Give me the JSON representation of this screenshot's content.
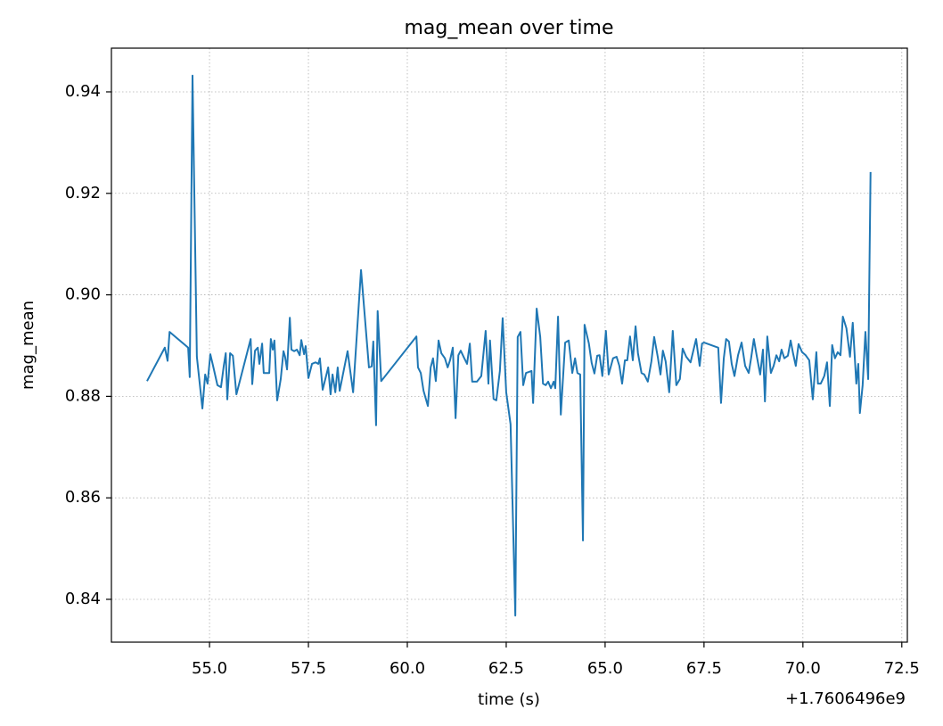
{
  "chart_data": {
    "type": "line",
    "title": "mag_mean over time",
    "xlabel": "time (s)",
    "ylabel": "mag_mean",
    "x_offset_label": "+1.7606496e9",
    "grid": true,
    "xlim": [
      52.52,
      72.64
    ],
    "ylim": [
      0.83156,
      0.94861
    ],
    "xticks": [
      {
        "value": 55.0,
        "label": "55.0"
      },
      57.5,
      {
        "value": 60.0,
        "label": "60.0"
      },
      62.5,
      {
        "value": 65.0,
        "label": "65.0"
      },
      67.5,
      {
        "value": 70.0,
        "label": "70.0"
      },
      72.5
    ],
    "yticks": [
      0.84,
      0.86,
      0.88,
      {
        "value": 0.9,
        "label": "0.90"
      },
      0.92,
      0.94
    ],
    "x": [
      53.42,
      53.87,
      53.94,
      53.99,
      54.46,
      54.5,
      54.57,
      54.68,
      54.82,
      54.89,
      54.95,
      55.02,
      55.09,
      55.2,
      55.29,
      55.36,
      55.41,
      55.45,
      55.52,
      55.59,
      55.68,
      56.04,
      56.08,
      56.15,
      56.22,
      56.26,
      56.33,
      56.37,
      56.51,
      56.55,
      56.6,
      56.64,
      56.71,
      56.8,
      56.87,
      56.91,
      56.96,
      57.03,
      57.07,
      57.14,
      57.21,
      57.28,
      57.32,
      57.39,
      57.43,
      57.5,
      57.59,
      57.68,
      57.75,
      57.79,
      57.86,
      58.0,
      58.06,
      58.11,
      58.18,
      58.24,
      58.29,
      58.49,
      58.63,
      58.83,
      59.03,
      59.1,
      59.14,
      59.21,
      59.25,
      59.34,
      60.23,
      60.27,
      60.34,
      60.41,
      60.52,
      60.59,
      60.65,
      60.72,
      60.79,
      60.86,
      60.95,
      61.02,
      61.08,
      61.15,
      61.22,
      61.29,
      61.35,
      61.44,
      61.51,
      61.58,
      61.64,
      61.76,
      61.87,
      61.98,
      62.05,
      62.09,
      62.18,
      62.25,
      62.34,
      62.41,
      62.5,
      62.61,
      62.73,
      62.79,
      62.86,
      62.93,
      63.0,
      63.14,
      63.18,
      63.27,
      63.36,
      63.43,
      63.5,
      63.56,
      63.63,
      63.7,
      63.74,
      63.81,
      63.88,
      63.99,
      64.08,
      64.17,
      64.24,
      64.3,
      64.37,
      64.44,
      64.48,
      64.59,
      64.66,
      64.73,
      64.8,
      64.86,
      64.93,
      65.02,
      65.09,
      65.2,
      65.29,
      65.36,
      65.43,
      65.5,
      65.56,
      65.63,
      65.7,
      65.77,
      65.83,
      65.92,
      65.99,
      66.08,
      66.17,
      66.24,
      66.33,
      66.4,
      66.46,
      66.53,
      66.62,
      66.71,
      66.8,
      66.89,
      66.96,
      67.05,
      67.16,
      67.3,
      67.39,
      67.45,
      67.5,
      67.86,
      67.93,
      68.0,
      68.06,
      68.13,
      68.2,
      68.27,
      68.36,
      68.45,
      68.54,
      68.63,
      68.69,
      68.76,
      68.83,
      68.92,
      68.99,
      69.04,
      69.1,
      69.19,
      69.26,
      69.33,
      69.4,
      69.46,
      69.53,
      69.62,
      69.69,
      69.75,
      69.82,
      69.89,
      69.98,
      70.07,
      70.16,
      70.25,
      70.34,
      70.38,
      70.45,
      70.54,
      70.61,
      70.68,
      70.74,
      70.81,
      70.88,
      70.95,
      71.01,
      71.1,
      71.19,
      71.26,
      71.35,
      71.4,
      71.44,
      71.51,
      71.58,
      71.65,
      71.71
    ],
    "series": [
      {
        "name": "mag_mean",
        "color": "#1f77b4",
        "values": [
          0.883,
          0.8896,
          0.887,
          0.8927,
          0.8896,
          0.8838,
          0.9432,
          0.8878,
          0.8776,
          0.8843,
          0.8825,
          0.8883,
          0.886,
          0.8822,
          0.8818,
          0.886,
          0.8885,
          0.8794,
          0.8885,
          0.888,
          0.8804,
          0.8913,
          0.8824,
          0.889,
          0.8896,
          0.8864,
          0.8904,
          0.8846,
          0.8846,
          0.8913,
          0.8892,
          0.891,
          0.8792,
          0.8834,
          0.8889,
          0.8878,
          0.8853,
          0.8955,
          0.8892,
          0.8889,
          0.8892,
          0.8881,
          0.8911,
          0.8883,
          0.8899,
          0.8836,
          0.8864,
          0.8867,
          0.8864,
          0.8875,
          0.8813,
          0.8857,
          0.8804,
          0.8843,
          0.8808,
          0.8857,
          0.8811,
          0.8889,
          0.8808,
          0.9049,
          0.8857,
          0.8859,
          0.8908,
          0.8743,
          0.8968,
          0.883,
          0.8918,
          0.8857,
          0.8846,
          0.8811,
          0.8781,
          0.8857,
          0.8875,
          0.883,
          0.891,
          0.8885,
          0.8875,
          0.8857,
          0.8871,
          0.8896,
          0.8757,
          0.8881,
          0.889,
          0.8875,
          0.8864,
          0.8904,
          0.8829,
          0.8829,
          0.884,
          0.8929,
          0.8825,
          0.891,
          0.8795,
          0.8792,
          0.885,
          0.8954,
          0.8808,
          0.8745,
          0.8368,
          0.8917,
          0.8927,
          0.8822,
          0.8846,
          0.885,
          0.8787,
          0.8973,
          0.8917,
          0.8825,
          0.8822,
          0.8829,
          0.8816,
          0.8829,
          0.8816,
          0.8957,
          0.8764,
          0.8906,
          0.891,
          0.8846,
          0.8875,
          0.8846,
          0.8843,
          0.8516,
          0.8941,
          0.8904,
          0.8866,
          0.8845,
          0.888,
          0.8881,
          0.884,
          0.8929,
          0.8843,
          0.8875,
          0.8878,
          0.886,
          0.8825,
          0.8871,
          0.8871,
          0.8918,
          0.8871,
          0.8938,
          0.8885,
          0.8846,
          0.8843,
          0.8829,
          0.8869,
          0.8917,
          0.8878,
          0.8843,
          0.889,
          0.8869,
          0.8808,
          0.8929,
          0.8822,
          0.8834,
          0.8894,
          0.8878,
          0.8867,
          0.8913,
          0.886,
          0.8904,
          0.8906,
          0.8896,
          0.8787,
          0.8875,
          0.8913,
          0.8908,
          0.8864,
          0.884,
          0.8881,
          0.8906,
          0.886,
          0.8846,
          0.8875,
          0.8913,
          0.8881,
          0.8843,
          0.8892,
          0.879,
          0.8918,
          0.8846,
          0.886,
          0.8881,
          0.8869,
          0.8892,
          0.8875,
          0.888,
          0.891,
          0.8885,
          0.886,
          0.8903,
          0.8887,
          0.8881,
          0.8871,
          0.8794,
          0.8887,
          0.8825,
          0.8825,
          0.884,
          0.8867,
          0.8781,
          0.8901,
          0.8875,
          0.8887,
          0.8881,
          0.8957,
          0.8934,
          0.8878,
          0.8945,
          0.8825,
          0.8864,
          0.8767,
          0.8822,
          0.8927,
          0.8834,
          0.9242
        ]
      }
    ]
  }
}
